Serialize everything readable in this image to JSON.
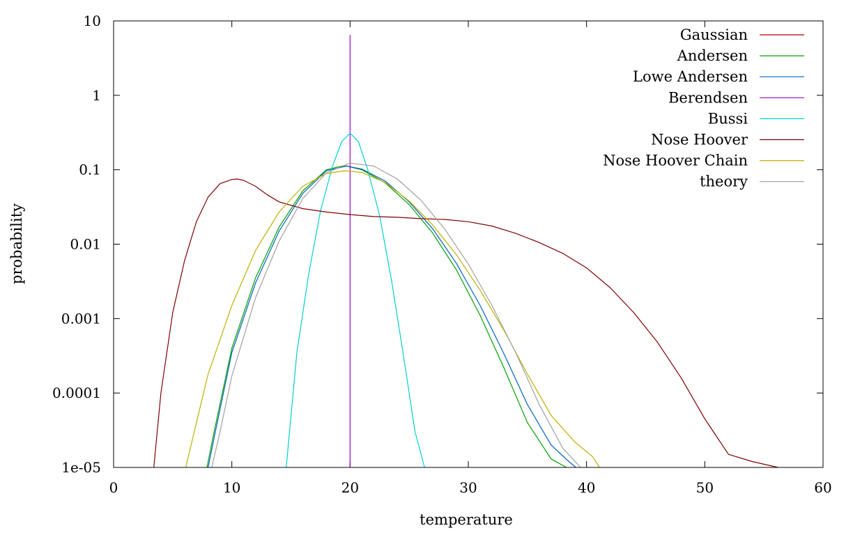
{
  "chart_data": {
    "type": "line",
    "title": "",
    "xlabel": "temperature",
    "ylabel": "probability",
    "xlim": [
      0,
      60
    ],
    "ylim": [
      1e-05,
      10
    ],
    "yscale": "log",
    "grid": false,
    "legend_position": "top-right",
    "x_ticks": [
      {
        "value": 0,
        "label": "0"
      },
      {
        "value": 10,
        "label": "10"
      },
      {
        "value": 20,
        "label": "20"
      },
      {
        "value": 30,
        "label": "30"
      },
      {
        "value": 40,
        "label": "40"
      },
      {
        "value": 50,
        "label": "50"
      },
      {
        "value": 60,
        "label": "60"
      }
    ],
    "y_ticks": [
      {
        "value": 1e-05,
        "label": "1e-05"
      },
      {
        "value": 0.0001,
        "label": "0.0001"
      },
      {
        "value": 0.001,
        "label": "0.001"
      },
      {
        "value": 0.01,
        "label": "0.01"
      },
      {
        "value": 0.1,
        "label": "0.1"
      },
      {
        "value": 1,
        "label": "1"
      },
      {
        "value": 10,
        "label": "10"
      }
    ],
    "series": [
      {
        "name": "Gaussian",
        "color": "#b00000",
        "x": [
          20,
          20
        ],
        "y": [
          1e-05,
          1e-05
        ]
      },
      {
        "name": "Andersen",
        "color": "#00a000",
        "x": [
          7.9,
          8.5,
          10,
          12,
          14,
          16,
          18,
          19.5,
          21,
          23,
          25,
          27,
          29,
          31,
          33,
          35,
          37,
          38.3
        ],
        "y": [
          1e-05,
          3e-05,
          0.0004,
          0.0035,
          0.017,
          0.052,
          0.1,
          0.114,
          0.1,
          0.066,
          0.034,
          0.014,
          0.0045,
          0.0011,
          0.00022,
          4e-05,
          1.3e-05,
          1e-05
        ]
      },
      {
        "name": "Lowe Andersen",
        "color": "#0060c0",
        "x": [
          8,
          8.5,
          10,
          12,
          14,
          16,
          18,
          19.7,
          21,
          23,
          25,
          27,
          29,
          31,
          33,
          35,
          37,
          38.5,
          39.1
        ],
        "y": [
          1e-05,
          2.5e-05,
          0.00035,
          0.003,
          0.015,
          0.048,
          0.097,
          0.112,
          0.102,
          0.07,
          0.037,
          0.016,
          0.0055,
          0.0015,
          0.00034,
          7e-05,
          2e-05,
          1.2e-05,
          1e-05
        ]
      },
      {
        "name": "Berendsen",
        "color": "#a000c0",
        "x": [
          20,
          20
        ],
        "y": [
          1e-05,
          6.5
        ]
      },
      {
        "name": "Bussi",
        "color": "#00d0d0",
        "x": [
          14.6,
          15.5,
          16.5,
          17.5,
          18.5,
          19.3,
          20,
          20.7,
          21.5,
          22.5,
          23.5,
          24.5,
          25.5,
          26.3
        ],
        "y": [
          1e-05,
          0.00035,
          0.004,
          0.028,
          0.11,
          0.24,
          0.31,
          0.24,
          0.1,
          0.024,
          0.0033,
          0.00033,
          3e-05,
          1e-05
        ]
      },
      {
        "name": "Nose Hoover",
        "color": "#800000",
        "x": [
          3.4,
          4,
          5,
          6,
          7,
          8,
          9,
          10,
          10.5,
          11,
          12,
          13,
          14,
          16,
          18,
          20,
          22,
          24,
          26,
          28,
          30,
          32,
          34,
          36,
          38,
          40,
          42,
          44,
          46,
          48,
          50,
          52,
          54,
          56.2
        ],
        "y": [
          1e-05,
          0.0001,
          0.0012,
          0.006,
          0.02,
          0.043,
          0.065,
          0.074,
          0.075,
          0.072,
          0.06,
          0.046,
          0.037,
          0.03,
          0.027,
          0.025,
          0.0235,
          0.023,
          0.022,
          0.0215,
          0.02,
          0.0175,
          0.014,
          0.0105,
          0.0075,
          0.0048,
          0.0026,
          0.0012,
          0.00048,
          0.00016,
          4.5e-05,
          1.5e-05,
          1.2e-05,
          1e-05
        ]
      },
      {
        "name": "Nose Hoover Chain",
        "color": "#c0b000",
        "x": [
          6.1,
          7,
          8,
          10,
          12,
          14,
          16,
          18,
          19.5,
          21,
          23,
          25,
          27,
          29,
          31,
          33,
          35,
          37,
          39,
          40.5,
          41.1
        ],
        "y": [
          1e-05,
          4e-05,
          0.00018,
          0.0015,
          0.0082,
          0.027,
          0.06,
          0.089,
          0.097,
          0.092,
          0.067,
          0.038,
          0.018,
          0.0072,
          0.0024,
          0.0007,
          0.00018,
          5e-05,
          2.2e-05,
          1.4e-05,
          1e-05
        ]
      },
      {
        "name": "theory",
        "color": "#a0a0a0",
        "x": [
          8.3,
          9,
          10,
          12,
          14,
          16,
          18,
          20,
          22,
          24,
          26,
          28,
          30,
          32,
          34,
          36,
          38,
          39.5
        ],
        "y": [
          1e-05,
          3e-05,
          0.00017,
          0.0019,
          0.011,
          0.041,
          0.091,
          0.123,
          0.112,
          0.075,
          0.039,
          0.016,
          0.0054,
          0.0015,
          0.00035,
          7e-05,
          1.8e-05,
          1e-05
        ]
      }
    ]
  }
}
